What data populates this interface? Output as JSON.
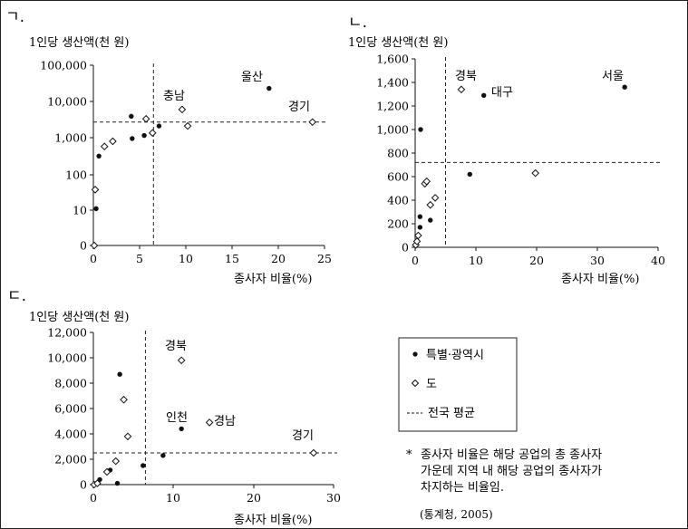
{
  "chart_data": [
    {
      "panel_label": "ㄱ.",
      "type": "scatter",
      "ylabel": "1인당 생산액(천 원)",
      "xlabel": "종사자 비율(%)",
      "xlim": [
        0,
        25
      ],
      "x_ticks": [
        "0",
        "5",
        "10",
        "15",
        "20",
        "25"
      ],
      "y_scale": "log (0 shown at bottom)",
      "y_ticks": [
        "0",
        "10",
        "100",
        "1,000",
        "10,000",
        "100,000"
      ],
      "national_average": {
        "x": 6.5,
        "y": 2700
      },
      "series": [
        {
          "name": "특별·광역시",
          "marker": "dot",
          "points": [
            [
              0.3,
              11
            ],
            [
              0.6,
              320
            ],
            [
              4.1,
              3900
            ],
            [
              4.2,
              950
            ],
            [
              5.5,
              1150
            ],
            [
              7.1,
              2100
            ],
            [
              19.0,
              23000
            ]
          ]
        },
        {
          "name": "도",
          "marker": "diamond",
          "points": [
            [
              0.1,
              0
            ],
            [
              0.2,
              38
            ],
            [
              1.2,
              580
            ],
            [
              2.1,
              800
            ],
            [
              5.7,
              3300
            ],
            [
              6.4,
              1350
            ],
            [
              9.6,
              6000
            ],
            [
              10.2,
              2100
            ],
            [
              23.7,
              2700
            ]
          ]
        }
      ],
      "annotations": [
        "울산",
        "충남",
        "경기"
      ]
    },
    {
      "panel_label": "ㄴ.",
      "type": "scatter",
      "ylabel": "1인당 생산액(천 원)",
      "xlabel": "종사자 비율(%)",
      "xlim": [
        0,
        40
      ],
      "ylim": [
        0,
        1600
      ],
      "x_ticks": [
        "0",
        "10",
        "20",
        "30",
        "40"
      ],
      "y_ticks": [
        "0",
        "200",
        "400",
        "600",
        "800",
        "1,000",
        "1,200",
        "1,400",
        "1,600"
      ],
      "national_average": {
        "x": 5,
        "y": 720
      },
      "series": [
        {
          "name": "특별·광역시",
          "marker": "dot",
          "points": [
            [
              0.8,
              260
            ],
            [
              0.8,
              170
            ],
            [
              0.9,
              1000
            ],
            [
              2.5,
              230
            ],
            [
              9.0,
              620
            ],
            [
              11.3,
              1290
            ],
            [
              34.5,
              1360
            ]
          ]
        },
        {
          "name": "도",
          "marker": "diamond",
          "points": [
            [
              0.1,
              20
            ],
            [
              0.3,
              50
            ],
            [
              0.5,
              100
            ],
            [
              1.6,
              540
            ],
            [
              1.9,
              560
            ],
            [
              2.5,
              360
            ],
            [
              3.3,
              420
            ],
            [
              7.6,
              1340
            ],
            [
              19.8,
              630
            ]
          ]
        }
      ],
      "annotations": [
        "서울",
        "경북",
        "대구"
      ]
    },
    {
      "panel_label": "ㄷ.",
      "type": "scatter",
      "ylabel": "1인당 생산액(천 원)",
      "xlabel": "종사자 비율(%)",
      "xlim": [
        0,
        30
      ],
      "ylim": [
        0,
        12000
      ],
      "x_ticks": [
        "0",
        "10",
        "20",
        "30"
      ],
      "y_ticks": [
        "0",
        "2,000",
        "4,000",
        "6,000",
        "8,000",
        "10,000",
        "12,000"
      ],
      "national_average": {
        "x": 6.5,
        "y": 2500
      },
      "series": [
        {
          "name": "특별·광역시",
          "marker": "dot",
          "points": [
            [
              0.8,
              400
            ],
            [
              2.1,
              1150
            ],
            [
              3.0,
              100
            ],
            [
              3.3,
              8700
            ],
            [
              6.2,
              1500
            ],
            [
              8.7,
              2300
            ],
            [
              11.0,
              4400
            ]
          ]
        },
        {
          "name": "도",
          "marker": "diamond",
          "points": [
            [
              0.1,
              0
            ],
            [
              0.5,
              100
            ],
            [
              1.7,
              1000
            ],
            [
              2.8,
              1850
            ],
            [
              3.8,
              6700
            ],
            [
              4.3,
              3800
            ],
            [
              11.0,
              9800
            ],
            [
              14.5,
              4900
            ],
            [
              27.5,
              2500
            ]
          ]
        }
      ],
      "annotations": [
        "경북",
        "인천",
        "경남",
        "경기"
      ]
    }
  ],
  "legend": {
    "items": [
      {
        "marker": "dot",
        "label": "특별·광역시"
      },
      {
        "marker": "diamond",
        "label": "도"
      },
      {
        "marker": "dashed-line",
        "label": "전국 평균"
      }
    ]
  },
  "note": {
    "bullet": "*",
    "lines": [
      "종사자 비율은 해당 공업의 총 종사자",
      "가운데 지역 내 해당 공업의 종사자가",
      "차지하는 비율임."
    ]
  },
  "source": "(통계청, 2005)"
}
